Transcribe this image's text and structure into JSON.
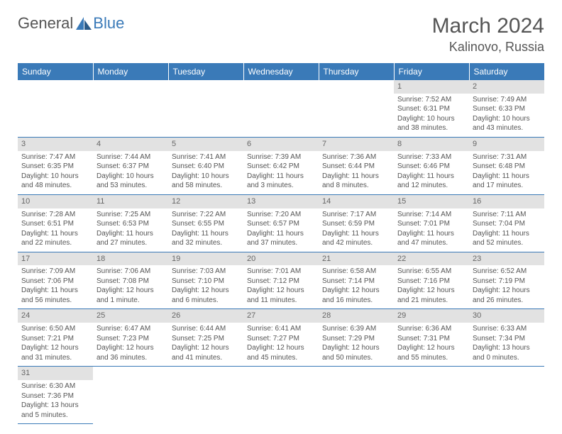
{
  "logo": {
    "text1": "General",
    "text2": "Blue"
  },
  "header": {
    "month": "March 2024",
    "location": "Kalinovo, Russia"
  },
  "colors": {
    "header_bg": "#3a7ab8",
    "header_text": "#ffffff",
    "daynum_bg": "#e2e2e2",
    "row_border": "#3a7ab8",
    "text": "#555555",
    "background": "#ffffff"
  },
  "weekdays": [
    "Sunday",
    "Monday",
    "Tuesday",
    "Wednesday",
    "Thursday",
    "Friday",
    "Saturday"
  ],
  "layout": {
    "first_weekday_index": 5,
    "days_in_month": 31
  },
  "days": {
    "1": {
      "sunrise": "7:52 AM",
      "sunset": "6:31 PM",
      "daylight": "10 hours and 38 minutes."
    },
    "2": {
      "sunrise": "7:49 AM",
      "sunset": "6:33 PM",
      "daylight": "10 hours and 43 minutes."
    },
    "3": {
      "sunrise": "7:47 AM",
      "sunset": "6:35 PM",
      "daylight": "10 hours and 48 minutes."
    },
    "4": {
      "sunrise": "7:44 AM",
      "sunset": "6:37 PM",
      "daylight": "10 hours and 53 minutes."
    },
    "5": {
      "sunrise": "7:41 AM",
      "sunset": "6:40 PM",
      "daylight": "10 hours and 58 minutes."
    },
    "6": {
      "sunrise": "7:39 AM",
      "sunset": "6:42 PM",
      "daylight": "11 hours and 3 minutes."
    },
    "7": {
      "sunrise": "7:36 AM",
      "sunset": "6:44 PM",
      "daylight": "11 hours and 8 minutes."
    },
    "8": {
      "sunrise": "7:33 AM",
      "sunset": "6:46 PM",
      "daylight": "11 hours and 12 minutes."
    },
    "9": {
      "sunrise": "7:31 AM",
      "sunset": "6:48 PM",
      "daylight": "11 hours and 17 minutes."
    },
    "10": {
      "sunrise": "7:28 AM",
      "sunset": "6:51 PM",
      "daylight": "11 hours and 22 minutes."
    },
    "11": {
      "sunrise": "7:25 AM",
      "sunset": "6:53 PM",
      "daylight": "11 hours and 27 minutes."
    },
    "12": {
      "sunrise": "7:22 AM",
      "sunset": "6:55 PM",
      "daylight": "11 hours and 32 minutes."
    },
    "13": {
      "sunrise": "7:20 AM",
      "sunset": "6:57 PM",
      "daylight": "11 hours and 37 minutes."
    },
    "14": {
      "sunrise": "7:17 AM",
      "sunset": "6:59 PM",
      "daylight": "11 hours and 42 minutes."
    },
    "15": {
      "sunrise": "7:14 AM",
      "sunset": "7:01 PM",
      "daylight": "11 hours and 47 minutes."
    },
    "16": {
      "sunrise": "7:11 AM",
      "sunset": "7:04 PM",
      "daylight": "11 hours and 52 minutes."
    },
    "17": {
      "sunrise": "7:09 AM",
      "sunset": "7:06 PM",
      "daylight": "11 hours and 56 minutes."
    },
    "18": {
      "sunrise": "7:06 AM",
      "sunset": "7:08 PM",
      "daylight": "12 hours and 1 minute."
    },
    "19": {
      "sunrise": "7:03 AM",
      "sunset": "7:10 PM",
      "daylight": "12 hours and 6 minutes."
    },
    "20": {
      "sunrise": "7:01 AM",
      "sunset": "7:12 PM",
      "daylight": "12 hours and 11 minutes."
    },
    "21": {
      "sunrise": "6:58 AM",
      "sunset": "7:14 PM",
      "daylight": "12 hours and 16 minutes."
    },
    "22": {
      "sunrise": "6:55 AM",
      "sunset": "7:16 PM",
      "daylight": "12 hours and 21 minutes."
    },
    "23": {
      "sunrise": "6:52 AM",
      "sunset": "7:19 PM",
      "daylight": "12 hours and 26 minutes."
    },
    "24": {
      "sunrise": "6:50 AM",
      "sunset": "7:21 PM",
      "daylight": "12 hours and 31 minutes."
    },
    "25": {
      "sunrise": "6:47 AM",
      "sunset": "7:23 PM",
      "daylight": "12 hours and 36 minutes."
    },
    "26": {
      "sunrise": "6:44 AM",
      "sunset": "7:25 PM",
      "daylight": "12 hours and 41 minutes."
    },
    "27": {
      "sunrise": "6:41 AM",
      "sunset": "7:27 PM",
      "daylight": "12 hours and 45 minutes."
    },
    "28": {
      "sunrise": "6:39 AM",
      "sunset": "7:29 PM",
      "daylight": "12 hours and 50 minutes."
    },
    "29": {
      "sunrise": "6:36 AM",
      "sunset": "7:31 PM",
      "daylight": "12 hours and 55 minutes."
    },
    "30": {
      "sunrise": "6:33 AM",
      "sunset": "7:34 PM",
      "daylight": "13 hours and 0 minutes."
    },
    "31": {
      "sunrise": "6:30 AM",
      "sunset": "7:36 PM",
      "daylight": "13 hours and 5 minutes."
    }
  },
  "labels": {
    "sunrise": "Sunrise:",
    "sunset": "Sunset:",
    "daylight": "Daylight:"
  }
}
